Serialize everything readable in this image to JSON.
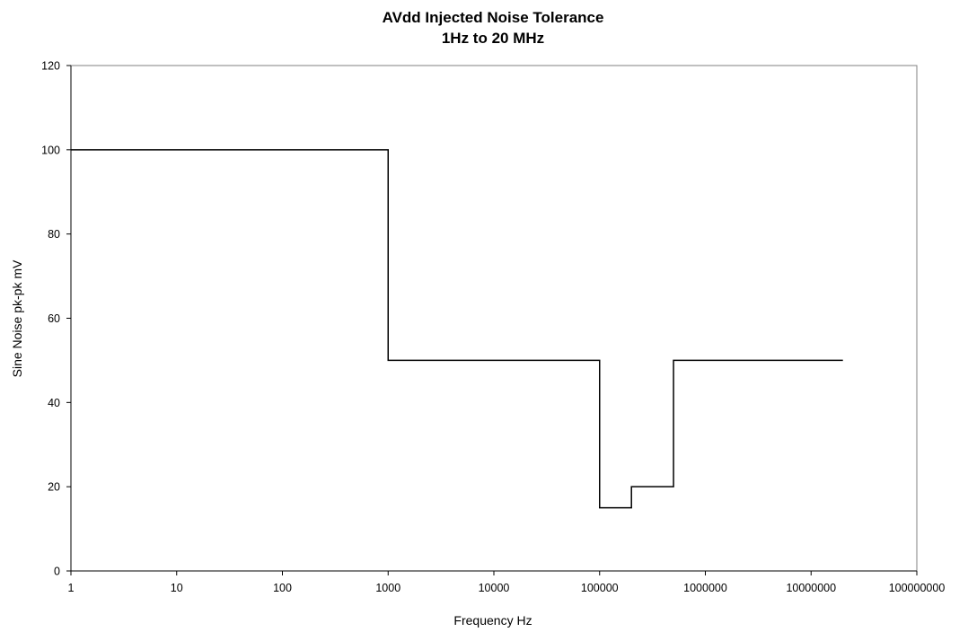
{
  "chart_data": {
    "type": "line",
    "title": "AVdd Injected Noise Tolerance",
    "subtitle": "1Hz to 20 MHz",
    "xlabel": "Frequency Hz",
    "ylabel": "Sine Noise pk-pk mV",
    "x_scale": "log",
    "xlim": [
      1,
      100000000
    ],
    "ylim": [
      0,
      120
    ],
    "x_ticks": [
      1,
      10,
      100,
      1000,
      10000,
      100000,
      1000000,
      10000000,
      100000000
    ],
    "x_tick_labels": [
      "1",
      "10",
      "100",
      "1000",
      "10000",
      "100000",
      "1000000",
      "10000000",
      "100000000"
    ],
    "y_ticks": [
      0,
      20,
      40,
      60,
      80,
      100,
      120
    ],
    "y_tick_labels": [
      "0",
      "20",
      "40",
      "60",
      "80",
      "100",
      "120"
    ],
    "grid": false,
    "legend": "none",
    "series": [
      {
        "color": "#000000",
        "points": [
          [
            1,
            100
          ],
          [
            1000,
            100
          ],
          [
            1000,
            50
          ],
          [
            100000,
            50
          ],
          [
            100000,
            15
          ],
          [
            200000,
            15
          ],
          [
            200000,
            20
          ],
          [
            500000,
            20
          ],
          [
            500000,
            50
          ],
          [
            20000000,
            50
          ]
        ]
      }
    ]
  }
}
